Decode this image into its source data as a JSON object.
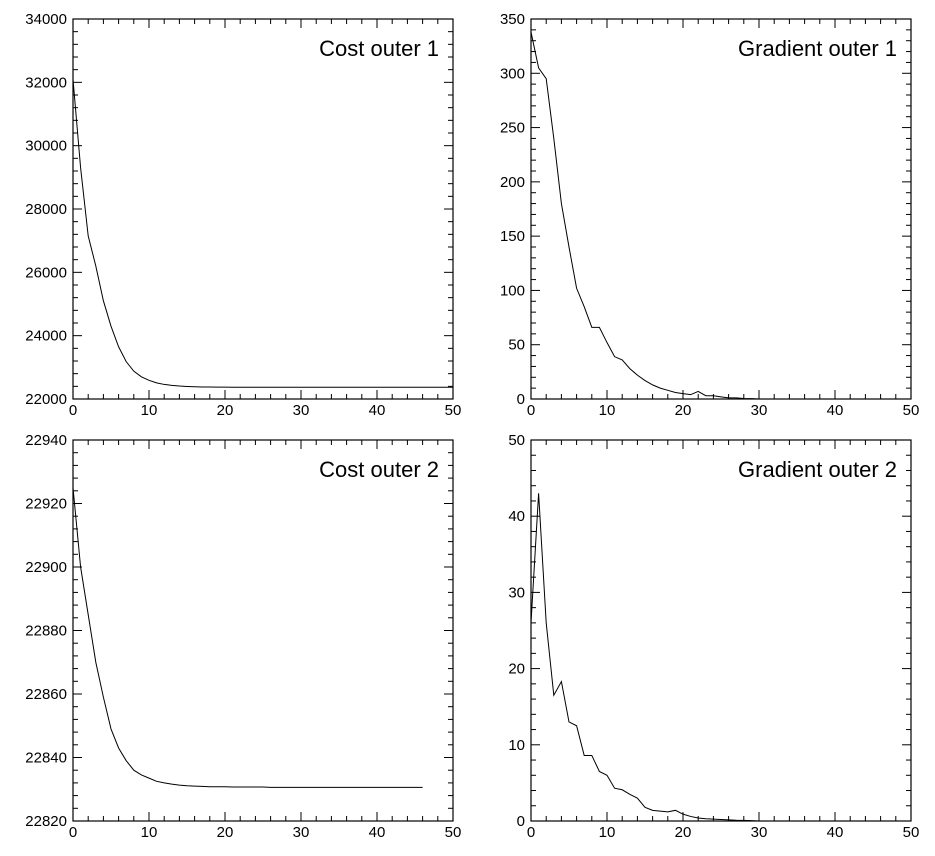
{
  "chart_data": [
    {
      "type": "line",
      "title": "Cost outer 1",
      "xlim": [
        0,
        50
      ],
      "ylim": [
        22000,
        34000
      ],
      "xticks": [
        "0",
        "10",
        "20",
        "30",
        "40",
        "50"
      ],
      "yticks": [
        "22000",
        "24000",
        "26000",
        "28000",
        "30000",
        "32000",
        "34000"
      ],
      "grid": false,
      "x": [
        0,
        1,
        2,
        3,
        4,
        5,
        6,
        7,
        8,
        9,
        10,
        11,
        12,
        13,
        14,
        15,
        16,
        17,
        18,
        19,
        20,
        21,
        22,
        23,
        24,
        25,
        26,
        27,
        28,
        29,
        30,
        31,
        32,
        33,
        34,
        35,
        36,
        37,
        38,
        39,
        40,
        41,
        42,
        43,
        44,
        45,
        46,
        47,
        48,
        49,
        50
      ],
      "y": [
        32100,
        29300,
        27150,
        26200,
        25100,
        24300,
        23650,
        23180,
        22880,
        22700,
        22590,
        22510,
        22460,
        22430,
        22410,
        22395,
        22385,
        22380,
        22377,
        22375,
        22374,
        22373,
        22372,
        22372,
        22372,
        22372,
        22372,
        22372,
        22372,
        22372,
        22372,
        22372,
        22372,
        22372,
        22372,
        22372,
        22372,
        22372,
        22372,
        22372,
        22372,
        22372,
        22372,
        22372,
        22372,
        22372,
        22372,
        22372,
        22372,
        22372,
        22372
      ]
    },
    {
      "type": "line",
      "title": "Gradient outer 1",
      "xlim": [
        0,
        50
      ],
      "ylim": [
        0,
        350
      ],
      "xticks": [
        "0",
        "10",
        "20",
        "30",
        "40",
        "50"
      ],
      "yticks": [
        "0",
        "50",
        "100",
        "150",
        "200",
        "250",
        "300",
        "350"
      ],
      "grid": false,
      "x": [
        0,
        1,
        2,
        3,
        4,
        5,
        6,
        7,
        8,
        9,
        10,
        11,
        12,
        13,
        14,
        15,
        16,
        17,
        18,
        19,
        20,
        21,
        22,
        23,
        24,
        25,
        26,
        27,
        28,
        29,
        30
      ],
      "y": [
        338,
        305,
        295,
        240,
        180,
        140,
        102,
        85,
        66,
        66,
        52,
        39,
        36,
        28,
        22,
        17,
        13,
        10,
        8,
        6,
        5,
        4,
        7,
        3,
        3,
        2,
        1,
        1,
        0.5,
        0.3,
        0
      ]
    },
    {
      "type": "line",
      "title": "Cost outer 2",
      "xlim": [
        0,
        50
      ],
      "ylim": [
        22820,
        22940
      ],
      "xticks": [
        "0",
        "10",
        "20",
        "30",
        "40",
        "50"
      ],
      "yticks": [
        "22820",
        "22840",
        "22860",
        "22880",
        "22900",
        "22920",
        "22940"
      ],
      "grid": false,
      "x": [
        0,
        1,
        2,
        3,
        4,
        5,
        6,
        7,
        8,
        9,
        10,
        11,
        12,
        13,
        14,
        15,
        16,
        17,
        18,
        19,
        20,
        21,
        22,
        23,
        24,
        25,
        26,
        27,
        28,
        29,
        30,
        31,
        32,
        33,
        34,
        35,
        36,
        37,
        38,
        39,
        40,
        41,
        42,
        43,
        44,
        45,
        46
      ],
      "y": [
        22925,
        22900,
        22885,
        22870,
        22859,
        22849,
        22843,
        22839,
        22836,
        22834.5,
        22833.5,
        22832.5,
        22832,
        22831.6,
        22831.3,
        22831.1,
        22831,
        22830.9,
        22830.8,
        22830.8,
        22830.8,
        22830.7,
        22830.7,
        22830.7,
        22830.7,
        22830.7,
        22830.6,
        22830.6,
        22830.6,
        22830.6,
        22830.6,
        22830.6,
        22830.6,
        22830.6,
        22830.6,
        22830.6,
        22830.6,
        22830.6,
        22830.6,
        22830.6,
        22830.6,
        22830.6,
        22830.6,
        22830.6,
        22830.6,
        22830.6,
        22830.6
      ]
    },
    {
      "type": "line",
      "title": "Gradient outer 2",
      "xlim": [
        0,
        50
      ],
      "ylim": [
        0,
        50
      ],
      "xticks": [
        "0",
        "10",
        "20",
        "30",
        "40",
        "50"
      ],
      "yticks": [
        "0",
        "10",
        "20",
        "30",
        "40",
        "50"
      ],
      "grid": false,
      "x": [
        0,
        1,
        2,
        3,
        4,
        5,
        6,
        7,
        8,
        9,
        10,
        11,
        12,
        13,
        14,
        15,
        16,
        17,
        18,
        19,
        20,
        21,
        22,
        23,
        24,
        25,
        26,
        27,
        28,
        29,
        30
      ],
      "y": [
        26,
        43,
        26,
        16.5,
        18.3,
        13,
        12.5,
        8.6,
        8.6,
        6.5,
        6,
        4.3,
        4.1,
        3.5,
        3,
        1.8,
        1.4,
        1.3,
        1.2,
        1.4,
        0.9,
        0.6,
        0.4,
        0.3,
        0.25,
        0.2,
        0.15,
        0.1,
        0.08,
        0.05,
        0
      ]
    }
  ]
}
